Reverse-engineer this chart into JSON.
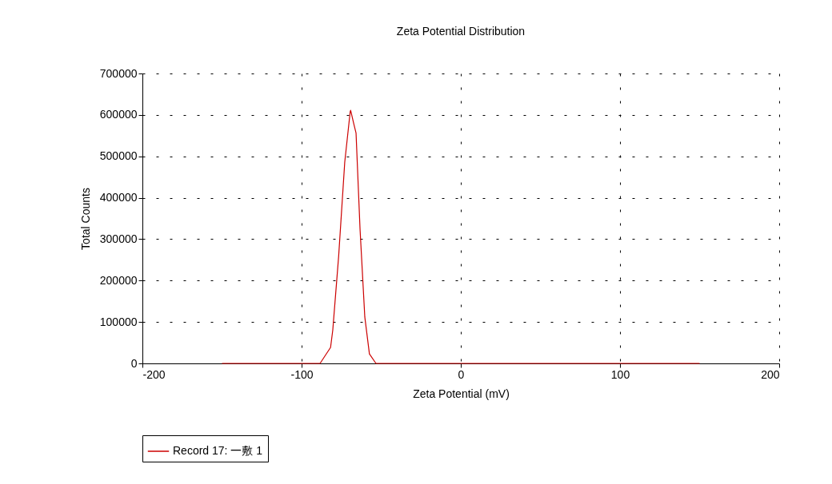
{
  "chart_data": {
    "type": "line",
    "title": "Zeta Potential Distribution",
    "xlabel": "Zeta Potential (mV)",
    "ylabel": "Total Counts",
    "series": [
      {
        "name": "Record 17: 一敷 1",
        "color": "#cc0000",
        "x": [
          -150,
          -88.4,
          -81.8,
          -80.4,
          -76.7,
          -72.9,
          -69.5,
          -69.2,
          -67.0,
          -65.8,
          -63.3,
          -60.3,
          -57.4,
          -53.3,
          150
        ],
        "values": [
          0,
          0,
          38500,
          81000,
          260000,
          486000,
          607000,
          611000,
          575000,
          556000,
          325000,
          112000,
          23000,
          0,
          0
        ]
      }
    ],
    "xlim": [
      -200,
      200
    ],
    "xticks": [
      -200,
      -100,
      0,
      100,
      200
    ],
    "ylim": [
      0,
      700000
    ],
    "yticks": [
      0,
      100000,
      200000,
      300000,
      400000,
      500000,
      600000,
      700000
    ],
    "grid": true,
    "legend": "bottom",
    "marker": "none",
    "line_style": "solid"
  }
}
